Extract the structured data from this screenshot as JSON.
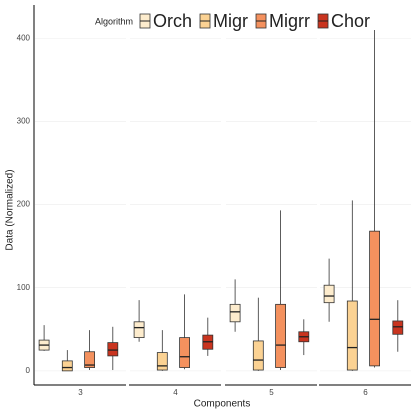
{
  "chart_data": {
    "type": "box",
    "x_label": "Components",
    "y_label": "Data  (Normalized)",
    "legend_title": "Algorithm",
    "legend_position": "top",
    "categories": [
      "3",
      "4",
      "5",
      "6"
    ],
    "ylim": [
      -17,
      440
    ],
    "yticks": [
      0,
      100,
      200,
      300,
      400
    ],
    "grid": true,
    "series": [
      {
        "name": "Orch",
        "color": "#fdeccd",
        "boxes": [
          {
            "min": 24,
            "q1": 25,
            "median": 31,
            "q3": 37,
            "max": 55
          },
          {
            "min": 35,
            "q1": 40,
            "median": 52,
            "q3": 59,
            "max": 85
          },
          {
            "min": 47,
            "q1": 59,
            "median": 71,
            "q3": 80,
            "max": 110
          },
          {
            "min": 59,
            "q1": 82,
            "median": 90,
            "q3": 103,
            "max": 135
          }
        ]
      },
      {
        "name": "Migr",
        "color": "#fbd293",
        "boxes": [
          {
            "min": 0,
            "q1": 0,
            "median": 4,
            "q3": 12,
            "max": 25
          },
          {
            "min": 0,
            "q1": 1,
            "median": 6,
            "q3": 22,
            "max": 49
          },
          {
            "min": 0,
            "q1": 1,
            "median": 13,
            "q3": 36,
            "max": 88
          },
          {
            "min": 0,
            "q1": 1,
            "median": 28,
            "q3": 84,
            "max": 205
          }
        ]
      },
      {
        "name": "Migrr",
        "color": "#f4915e",
        "boxes": [
          {
            "min": 1,
            "q1": 4,
            "median": 7,
            "q3": 23,
            "max": 49
          },
          {
            "min": 2,
            "q1": 4,
            "median": 17,
            "q3": 40,
            "max": 92
          },
          {
            "min": 1,
            "q1": 4,
            "median": 31,
            "q3": 80,
            "max": 193
          },
          {
            "min": 4,
            "q1": 6,
            "median": 62,
            "q3": 168,
            "max": 410
          }
        ]
      },
      {
        "name": "Chor",
        "color": "#c9341f",
        "boxes": [
          {
            "min": 1,
            "q1": 18,
            "median": 25,
            "q3": 34,
            "max": 53
          },
          {
            "min": 18,
            "q1": 26,
            "median": 35,
            "q3": 43,
            "max": 64
          },
          {
            "min": 19,
            "q1": 35,
            "median": 41,
            "q3": 47,
            "max": 62
          },
          {
            "min": 23,
            "q1": 44,
            "median": 53,
            "q3": 60,
            "max": 85
          }
        ]
      }
    ]
  }
}
